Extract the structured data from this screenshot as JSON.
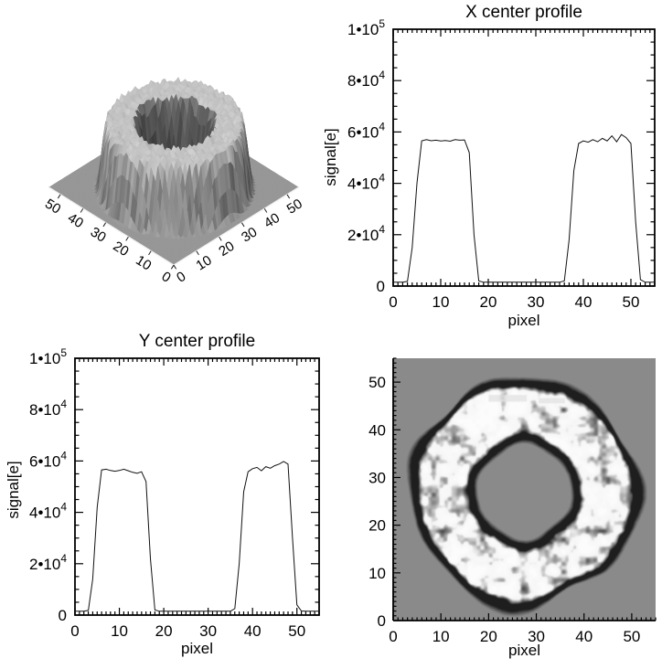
{
  "figure": {
    "background": "#ffffff",
    "description": "Four-panel grayscale figure of a ring-shaped signal: 3D shaded surface, X/Y center profiles, and 2D ring image"
  },
  "chart_data": [
    {
      "type": "surface_3d",
      "title": "",
      "xlabel": "",
      "ylabel": "",
      "xlim": [
        0,
        55
      ],
      "ylim": [
        0,
        55
      ],
      "zlim": [
        0,
        100000
      ],
      "x_ticks": [
        0,
        10,
        20,
        30,
        40,
        50
      ],
      "y_ticks": [
        0,
        10,
        20,
        30,
        40,
        50
      ],
      "ring": {
        "cx": 27.5,
        "cy": 27.0,
        "r_plateau_outer": 21.0,
        "outer_edge_width": 3.8,
        "r_plateau_inner": 13.0,
        "inner_edge_width": 4.0,
        "plateau_signal": 57000,
        "background_signal": 1500
      },
      "colors": {
        "ground": "#969696",
        "plateau_top": "#cdcdcd",
        "wall_dark": "#5a5a5a"
      }
    },
    {
      "type": "line",
      "title": "X center profile",
      "xlabel": "pixel",
      "ylabel": "signal[e]",
      "xlim": [
        0,
        55
      ],
      "ylim": [
        0,
        100000
      ],
      "x_major_ticks": [
        0,
        10,
        20,
        30,
        40,
        50
      ],
      "x_minor_step": 1,
      "y_major_ticks": [
        0,
        20000,
        40000,
        60000,
        80000,
        100000
      ],
      "y_tick_labels": [
        "0",
        "2•10^4",
        "4•10^4",
        "6•10^4",
        "8•10^4",
        "1•10^5"
      ],
      "y_minor_step": 5000,
      "line_color": "#111111",
      "x": [
        0,
        1,
        2,
        3,
        4,
        5,
        6,
        7,
        8,
        9,
        10,
        11,
        12,
        13,
        14,
        15,
        16,
        17,
        18,
        19,
        20,
        21,
        22,
        23,
        24,
        25,
        26,
        27,
        28,
        29,
        30,
        31,
        32,
        33,
        34,
        35,
        36,
        37,
        38,
        39,
        40,
        41,
        42,
        43,
        44,
        45,
        46,
        47,
        48,
        49,
        50,
        51,
        52,
        53,
        54,
        55
      ],
      "y": [
        1500,
        1500,
        1500,
        1800,
        15000,
        40000,
        56500,
        57000,
        56600,
        56800,
        56500,
        56700,
        56400,
        57000,
        56800,
        56900,
        52000,
        20000,
        2000,
        1500,
        1500,
        1500,
        1500,
        1500,
        1500,
        1500,
        1500,
        1500,
        1500,
        1500,
        1500,
        1500,
        1500,
        1500,
        1500,
        1500,
        2000,
        18000,
        45000,
        55500,
        56500,
        56000,
        57000,
        56200,
        57500,
        56500,
        58500,
        56200,
        59000,
        57800,
        55500,
        25000,
        2500,
        1500,
        1500,
        1500
      ]
    },
    {
      "type": "line",
      "title": "Y center profile",
      "xlabel": "pixel",
      "ylabel": "signal[e]",
      "xlim": [
        0,
        55
      ],
      "ylim": [
        0,
        100000
      ],
      "x_major_ticks": [
        0,
        10,
        20,
        30,
        40,
        50
      ],
      "x_minor_step": 1,
      "y_major_ticks": [
        0,
        20000,
        40000,
        60000,
        80000,
        100000
      ],
      "y_tick_labels": [
        "0",
        "2•10^4",
        "4•10^4",
        "6•10^4",
        "8•10^4",
        "1•10^5"
      ],
      "y_minor_step": 5000,
      "line_color": "#111111",
      "x": [
        0,
        1,
        2,
        3,
        4,
        5,
        6,
        7,
        8,
        9,
        10,
        11,
        12,
        13,
        14,
        15,
        16,
        17,
        18,
        19,
        20,
        21,
        22,
        23,
        24,
        25,
        26,
        27,
        28,
        29,
        30,
        31,
        32,
        33,
        34,
        35,
        36,
        37,
        38,
        39,
        40,
        41,
        42,
        43,
        44,
        45,
        46,
        47,
        48,
        49,
        50,
        51,
        52,
        53,
        54,
        55
      ],
      "y": [
        1500,
        1500,
        1500,
        1800,
        14000,
        42000,
        56500,
        56800,
        56300,
        56000,
        56300,
        56800,
        56200,
        55600,
        55200,
        55800,
        52000,
        22000,
        2000,
        1500,
        1500,
        1500,
        1500,
        1500,
        1500,
        1500,
        1500,
        1500,
        1500,
        1500,
        1500,
        1500,
        1500,
        1500,
        1500,
        1500,
        2500,
        20000,
        48000,
        55800,
        57000,
        57500,
        56200,
        57800,
        57200,
        58200,
        58800,
        59800,
        58800,
        30000,
        4000,
        1600,
        1500,
        1500,
        1500,
        1500
      ]
    },
    {
      "type": "heatmap",
      "title": "",
      "xlabel": "pixel",
      "ylabel": "",
      "xlim": [
        0,
        55
      ],
      "ylim": [
        0,
        55
      ],
      "x_major_ticks": [
        0,
        10,
        20,
        30,
        40,
        50
      ],
      "y_major_ticks": [
        0,
        10,
        20,
        30,
        40,
        50
      ],
      "minor_step": 1,
      "ring": {
        "cx": 27.5,
        "cy": 27.0,
        "r_plateau_outer": 21.0,
        "outer_edge_width": 3.8,
        "r_plateau_inner": 13.0,
        "inner_edge_width": 4.0,
        "plateau_signal": 57000,
        "background_signal": 1500
      },
      "colors": {
        "background": "#8a8a8a",
        "ring_edge_dark": "#1e1e1e",
        "plateau_bright": "#f4f4f4"
      },
      "bright_streaks": [
        {
          "x": 20.0,
          "y": 46.6,
          "w": 8.0,
          "h": 1.4
        },
        {
          "x": 30.5,
          "y": 46.1,
          "w": 5.5,
          "h": 1.1
        }
      ]
    }
  ]
}
